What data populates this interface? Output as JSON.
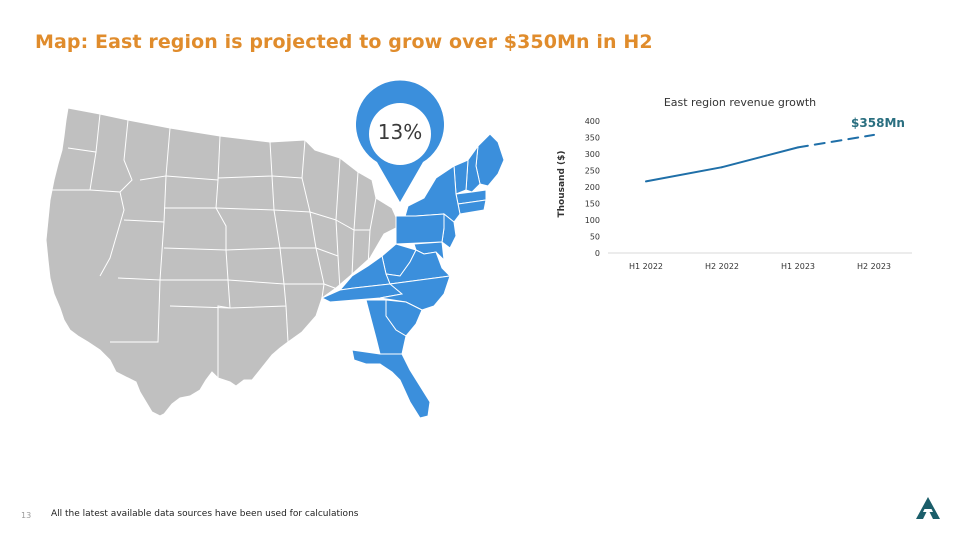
{
  "slide": {
    "title": "Map: East region is projected to grow over $350Mn in H2",
    "page_number": "13",
    "footer_note": "All the latest available data sources have been used for calculations"
  },
  "map": {
    "callout_value": "13%",
    "highlight_color": "#3b8fdc",
    "base_color": "#c0c0c0",
    "highlighted_region": "East"
  },
  "colors": {
    "title": "#e08c2c",
    "line": "#1f6fa8",
    "annotation": "#2a6f80",
    "logo": "#1b5e6a"
  },
  "chart_data": {
    "type": "line",
    "title": "East region revenue growth",
    "ylabel": "Thousand ($)",
    "xlabel": "",
    "categories": [
      "H1 2022",
      "H2 2022",
      "H1 2023",
      "H2 2023"
    ],
    "yticks": [
      0,
      50,
      100,
      150,
      200,
      250,
      300,
      350,
      400
    ],
    "ylim": [
      0,
      400
    ],
    "series": [
      {
        "values": [
          217,
          260,
          320,
          358
        ],
        "projected_from_index": 2
      }
    ],
    "annotation": {
      "text": "$358Mn",
      "category_index": 3
    },
    "grid": false
  }
}
